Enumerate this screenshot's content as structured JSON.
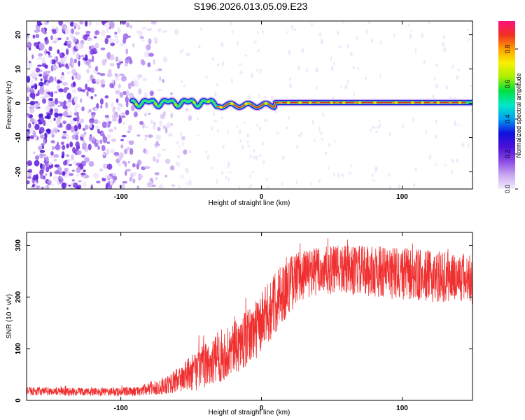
{
  "title": "S196.2026.013.05.09.E23",
  "chart_data": [
    {
      "type": "heatmap",
      "xlabel": "Height of straight line (km)",
      "ylabel": "Frequency (Hz)",
      "xlim": [
        -167,
        150
      ],
      "ylim": [
        -25,
        24
      ],
      "xticks": [
        -100,
        0,
        100
      ],
      "yticks": [
        20,
        10,
        0,
        -10,
        -20
      ],
      "xtick_labels": [
        "-100",
        "0",
        "100"
      ],
      "ytick_labels": [
        "20",
        "10",
        "0",
        "-10",
        "-20"
      ],
      "colorbar": {
        "label": "Normalized spectral amplitude",
        "range": [
          0,
          0.96
        ],
        "ticks": [
          0,
          0.2,
          0.4,
          0.6,
          0.8
        ],
        "tick_labels": [
          "0.0",
          "0.2",
          "0.4",
          "0.6",
          "0.8"
        ],
        "colors": [
          "#f4ecfc",
          "#c8a8f2",
          "#8a48e6",
          "#4b10d8",
          "#1010e0",
          "#00a0f0",
          "#00e8c8",
          "#00e040",
          "#a8f000",
          "#f8f000",
          "#ffa000",
          "#f03020",
          "#ff1080"
        ]
      },
      "ridge": {
        "start_x": -92,
        "frequency_hz": 0.2,
        "noise_region_x": [
          -167,
          -60
        ]
      }
    },
    {
      "type": "line",
      "xlabel": "Height of straight line (km)",
      "ylabel": "SNR (10 * v/v)",
      "xlim": [
        -167,
        150
      ],
      "ylim": [
        0,
        325
      ],
      "xticks": [
        -100,
        0,
        100
      ],
      "yticks": [
        0,
        100,
        200,
        300
      ],
      "xtick_labels": [
        "-100",
        "0",
        "100"
      ],
      "ytick_labels": [
        "0",
        "100",
        "200",
        "300"
      ],
      "series": [
        {
          "name": "SNR",
          "color": "#f03030",
          "envelope_x": [
            -167,
            -140,
            -110,
            -90,
            -75,
            -60,
            -45,
            -30,
            -20,
            -10,
            0,
            10,
            20,
            30,
            40,
            60,
            80,
            100,
            120,
            140,
            150
          ],
          "envelope_mean": [
            18,
            17,
            16,
            17,
            24,
            38,
            60,
            82,
            100,
            120,
            150,
            190,
            225,
            245,
            250,
            252,
            250,
            245,
            240,
            238,
            235
          ],
          "envelope_spread": [
            8,
            8,
            8,
            9,
            14,
            24,
            40,
            48,
            50,
            55,
            60,
            60,
            55,
            50,
            48,
            48,
            50,
            52,
            50,
            50,
            50
          ]
        }
      ]
    }
  ]
}
